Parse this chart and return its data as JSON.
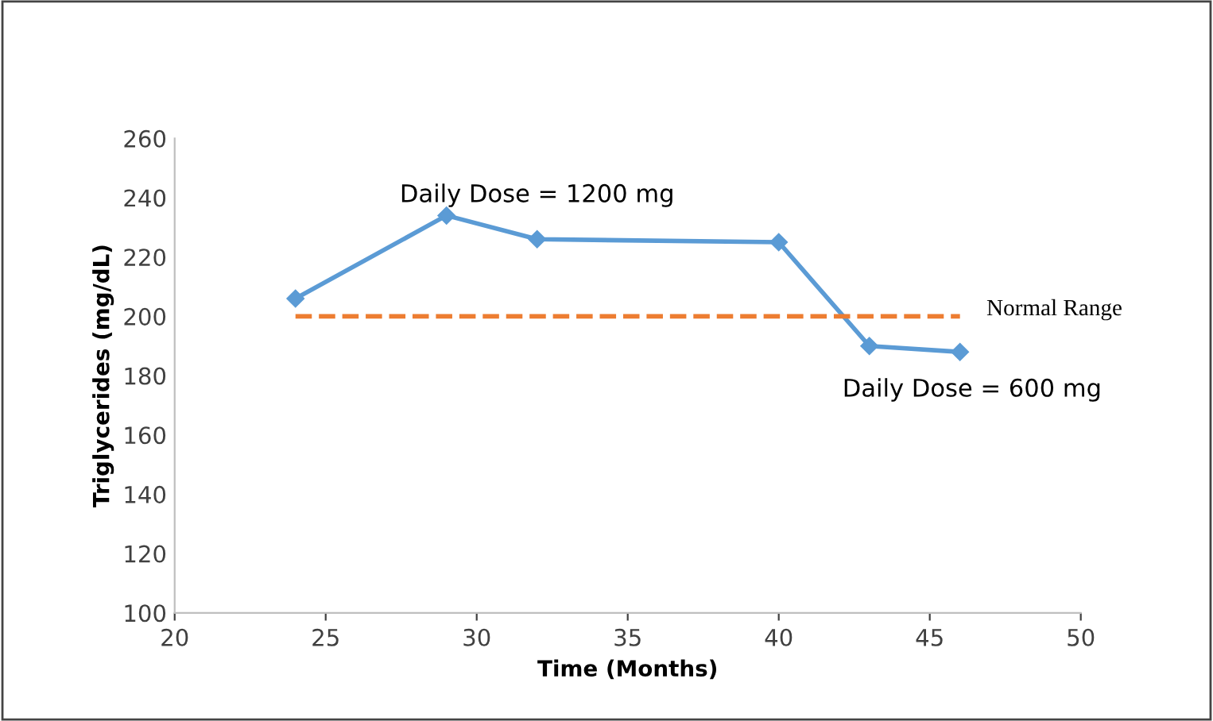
{
  "chart_data": {
    "type": "line",
    "xlabel": "Time (Months)",
    "ylabel": "Triglycerides (mg/dL)",
    "x": [
      24,
      29,
      32,
      40,
      43,
      46
    ],
    "series": [
      {
        "color": "#5b9bd5",
        "values": [
          206,
          234,
          226,
          225,
          190,
          188
        ]
      }
    ],
    "xlim": [
      20,
      50
    ],
    "xticks": [
      20,
      25,
      30,
      35,
      40,
      45,
      50
    ],
    "ylim": [
      100,
      260
    ],
    "yticks": [
      100,
      120,
      140,
      160,
      180,
      200,
      220,
      240,
      260
    ],
    "marker": "diamond",
    "line_style": "solid",
    "grid": false,
    "ref_lines": [
      {
        "axis": "y",
        "value": 200,
        "label": "Normal Range",
        "color": "#ed7d31",
        "line_style": "dashed"
      }
    ],
    "annotations": [
      "Daily Dose = 1200 mg",
      "Daily Dose = 600 mg"
    ]
  }
}
